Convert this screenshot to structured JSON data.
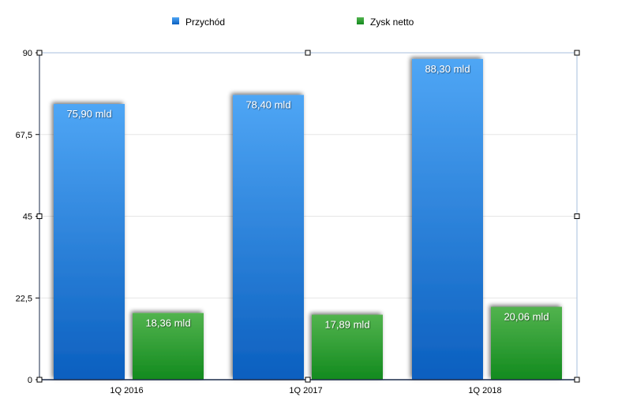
{
  "chart_data": {
    "type": "bar",
    "categories": [
      "1Q 2016",
      "1Q 2017",
      "1Q 2018"
    ],
    "series": [
      {
        "name": "Przychód",
        "values": [
          75.9,
          78.4,
          88.3
        ],
        "labels": [
          "75,90 mld",
          "78,40 mld",
          "88,30 mld"
        ],
        "color": "#2f7fdc"
      },
      {
        "name": "Zysk netto",
        "values": [
          18.36,
          17.89,
          20.06
        ],
        "labels": [
          "18,36 mld",
          "17,89 mld",
          "20,06 mld"
        ],
        "color": "#2e9a33"
      }
    ],
    "ylim": [
      0,
      90
    ],
    "yticks": [
      0,
      22.5,
      45,
      67.5,
      90
    ],
    "ytick_labels": [
      "0",
      "22,5",
      "45",
      "67,5",
      "90"
    ],
    "grid": true,
    "legend_position": "top-center",
    "title": "",
    "xlabel": "",
    "ylabel": ""
  }
}
